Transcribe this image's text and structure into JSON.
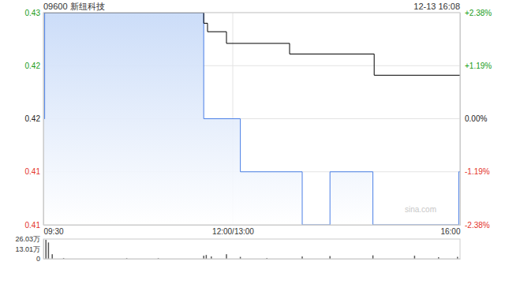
{
  "chart_data": [
    {
      "type": "line",
      "title": "09600 新纽科技",
      "subtitle": "12-13 16:08",
      "annotation": "sina.com",
      "grid": true,
      "xlim": [
        0,
        330
      ],
      "xticks": [
        {
          "value": 0,
          "label": "09:30"
        },
        {
          "value": 150,
          "label": "12:00/13:00"
        },
        {
          "value": 330,
          "label": "16:00"
        }
      ],
      "ylim": [
        0.41,
        0.43
      ],
      "yticks": [
        0.41,
        {
          "value": 0.415,
          "label": "0.41"
        },
        0.42,
        {
          "value": 0.425,
          "label": "0.42"
        },
        0.43
      ],
      "y2lim": [
        -2.38,
        2.38
      ],
      "y2ticks": [
        {
          "value": -2.38,
          "label": "-2.38%"
        },
        {
          "value": -1.19,
          "label": "-1.19%"
        },
        {
          "value": 0,
          "label": "0.00%"
        },
        {
          "value": 1.19,
          "label": "+1.19%"
        },
        {
          "value": 2.38,
          "label": "+2.38%"
        }
      ],
      "series": [
        {
          "type": "area",
          "color": "#4a7fe6",
          "line_style": "step",
          "x": [
            0,
            1,
            127,
            156,
            205,
            227,
            261,
            329,
            330
          ],
          "values": [
            0.42,
            0.43,
            0.42,
            0.415,
            0.41,
            0.415,
            0.41,
            0.415,
            0.415
          ]
        },
        {
          "type": "line",
          "color": "#000000",
          "line_style": "step",
          "x": [
            0,
            127,
            130,
            145,
            195,
            262,
            330
          ],
          "values": [
            0.43,
            0.429,
            0.4282,
            0.4271,
            0.4261,
            0.4241,
            0.4241
          ]
        }
      ]
    },
    {
      "type": "bar",
      "grid": false,
      "color": "#555555",
      "xlim": [
        0,
        330
      ],
      "ylim": [
        0,
        260300
      ],
      "yticks": [
        0,
        {
          "value": 130100,
          "label": "13.01万"
        },
        {
          "value": 260300,
          "label": "26.03万"
        }
      ],
      "x": [
        0,
        2,
        4,
        7,
        16,
        66,
        91,
        127,
        129,
        133,
        145,
        156,
        177,
        205,
        227,
        261,
        294,
        313,
        328
      ],
      "values": [
        255000,
        250000,
        215000,
        60000,
        10000,
        8000,
        8000,
        40000,
        50000,
        30000,
        60000,
        25000,
        10000,
        30000,
        35000,
        45000,
        40000,
        20000,
        25000
      ]
    }
  ]
}
